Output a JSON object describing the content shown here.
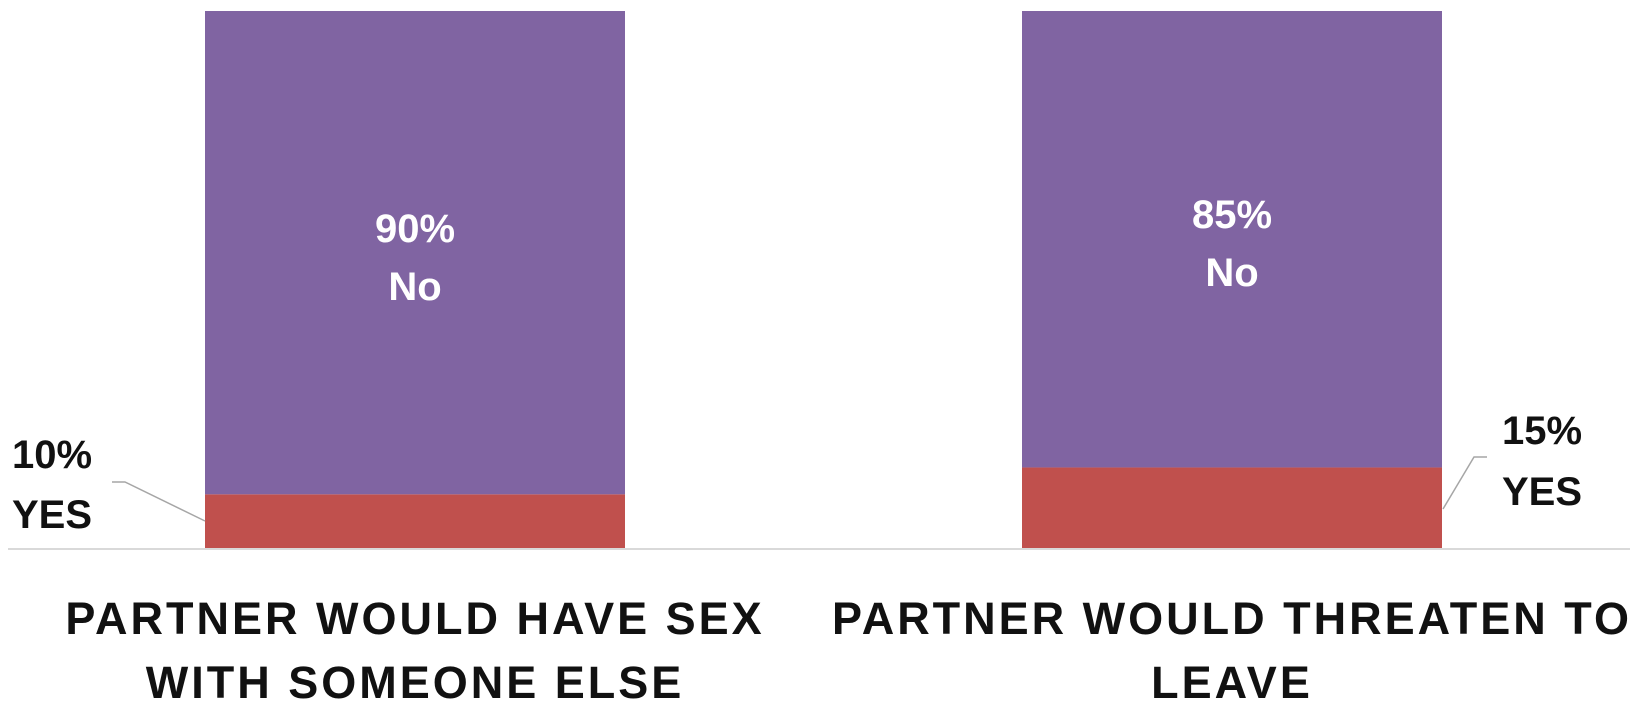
{
  "chart_data": {
    "type": "bar",
    "stacked": true,
    "percent": true,
    "categories": [
      [
        "PARTNER WOULD HAVE SEX",
        "WITH SOMEONE ELSE"
      ],
      [
        "PARTNER WOULD THREATEN TO",
        "LEAVE"
      ]
    ],
    "series": [
      {
        "name": "YES",
        "color": "#C0504D",
        "values": [
          10,
          15
        ],
        "labels": [
          [
            "10%",
            "YES"
          ],
          [
            "15%",
            "YES"
          ]
        ]
      },
      {
        "name": "No",
        "color": "#8064A2",
        "values": [
          90,
          85
        ],
        "labels": [
          [
            "90%",
            "No"
          ],
          [
            "85%",
            "No"
          ]
        ]
      }
    ],
    "ylim": [
      0,
      100
    ],
    "grid": false,
    "legend": "none",
    "axis_color": "#D9D9D9"
  }
}
